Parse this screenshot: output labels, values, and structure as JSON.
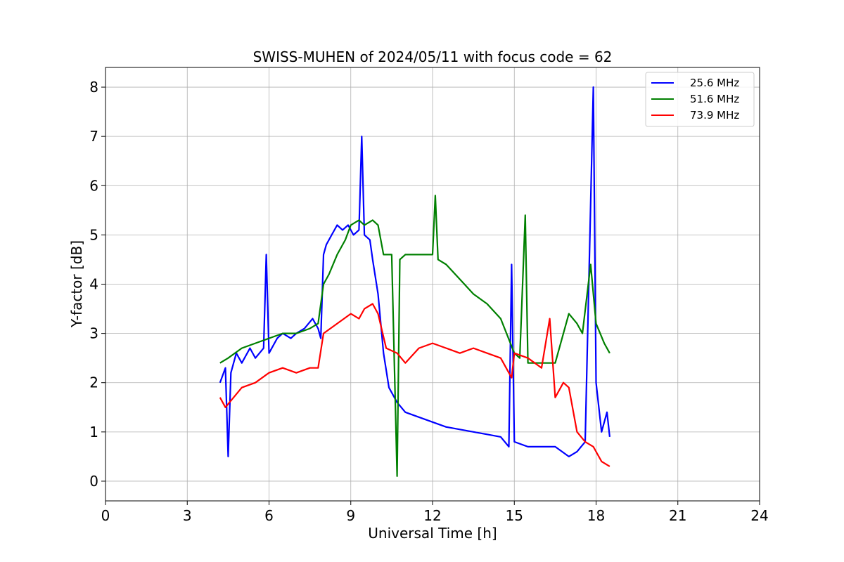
{
  "chart_data": {
    "type": "line",
    "title": "SWISS-MUHEN of 2024/05/11 with focus code = 62",
    "xlabel": "Universal Time [h]",
    "ylabel": "Y-factor [dB]",
    "xlim": [
      0,
      24
    ],
    "ylim": [
      -0.4,
      8.4
    ],
    "xticks": [
      "0",
      "3",
      "6",
      "9",
      "12",
      "15",
      "18",
      "21",
      "24"
    ],
    "yticks": [
      "0",
      "1",
      "2",
      "3",
      "4",
      "5",
      "6",
      "7",
      "8"
    ],
    "grid": true,
    "legend_position": "top-right",
    "series": [
      {
        "name": "25.6 MHz",
        "color": "#0000ff",
        "points": [
          [
            4.2,
            2.0
          ],
          [
            4.4,
            2.3
          ],
          [
            4.5,
            0.5
          ],
          [
            4.6,
            2.2
          ],
          [
            4.8,
            2.6
          ],
          [
            5.0,
            2.4
          ],
          [
            5.3,
            2.7
          ],
          [
            5.5,
            2.5
          ],
          [
            5.8,
            2.7
          ],
          [
            5.9,
            4.6
          ],
          [
            6.0,
            2.6
          ],
          [
            6.3,
            2.9
          ],
          [
            6.5,
            3.0
          ],
          [
            6.8,
            2.9
          ],
          [
            7.0,
            3.0
          ],
          [
            7.3,
            3.1
          ],
          [
            7.6,
            3.3
          ],
          [
            7.8,
            3.1
          ],
          [
            7.9,
            2.9
          ],
          [
            8.0,
            4.6
          ],
          [
            8.1,
            4.8
          ],
          [
            8.3,
            5.0
          ],
          [
            8.5,
            5.2
          ],
          [
            8.7,
            5.1
          ],
          [
            8.9,
            5.2
          ],
          [
            9.1,
            5.0
          ],
          [
            9.3,
            5.1
          ],
          [
            9.4,
            7.0
          ],
          [
            9.5,
            5.0
          ],
          [
            9.7,
            4.9
          ],
          [
            9.8,
            4.5
          ],
          [
            10.0,
            3.8
          ],
          [
            10.2,
            2.6
          ],
          [
            10.4,
            1.9
          ],
          [
            10.7,
            1.6
          ],
          [
            11.0,
            1.4
          ],
          [
            11.5,
            1.3
          ],
          [
            12.0,
            1.2
          ],
          [
            12.5,
            1.1
          ],
          [
            13.0,
            1.05
          ],
          [
            13.5,
            1.0
          ],
          [
            14.0,
            0.95
          ],
          [
            14.5,
            0.9
          ],
          [
            14.8,
            0.7
          ],
          [
            14.9,
            4.4
          ],
          [
            15.0,
            0.8
          ],
          [
            15.5,
            0.7
          ],
          [
            16.0,
            0.7
          ],
          [
            16.5,
            0.7
          ],
          [
            17.0,
            0.5
          ],
          [
            17.3,
            0.6
          ],
          [
            17.6,
            0.8
          ],
          [
            17.9,
            8.0
          ],
          [
            18.0,
            2.0
          ],
          [
            18.2,
            1.0
          ],
          [
            18.4,
            1.4
          ],
          [
            18.5,
            0.9
          ]
        ]
      },
      {
        "name": "51.6 MHz",
        "color": "#008000",
        "points": [
          [
            4.2,
            2.4
          ],
          [
            4.5,
            2.5
          ],
          [
            5.0,
            2.7
          ],
          [
            5.5,
            2.8
          ],
          [
            6.0,
            2.9
          ],
          [
            6.5,
            3.0
          ],
          [
            7.0,
            3.0
          ],
          [
            7.5,
            3.1
          ],
          [
            7.8,
            3.2
          ],
          [
            8.0,
            4.0
          ],
          [
            8.2,
            4.2
          ],
          [
            8.5,
            4.6
          ],
          [
            8.8,
            4.9
          ],
          [
            9.0,
            5.2
          ],
          [
            9.3,
            5.3
          ],
          [
            9.5,
            5.2
          ],
          [
            9.8,
            5.3
          ],
          [
            10.0,
            5.2
          ],
          [
            10.2,
            4.6
          ],
          [
            10.5,
            4.6
          ],
          [
            10.7,
            0.1
          ],
          [
            10.8,
            4.5
          ],
          [
            11.0,
            4.6
          ],
          [
            11.5,
            4.6
          ],
          [
            12.0,
            4.6
          ],
          [
            12.1,
            5.8
          ],
          [
            12.2,
            4.5
          ],
          [
            12.5,
            4.4
          ],
          [
            13.0,
            4.1
          ],
          [
            13.5,
            3.8
          ],
          [
            14.0,
            3.6
          ],
          [
            14.5,
            3.3
          ],
          [
            15.0,
            2.6
          ],
          [
            15.2,
            2.5
          ],
          [
            15.4,
            5.4
          ],
          [
            15.5,
            2.4
          ],
          [
            16.0,
            2.4
          ],
          [
            16.5,
            2.4
          ],
          [
            17.0,
            3.4
          ],
          [
            17.3,
            3.2
          ],
          [
            17.5,
            3.0
          ],
          [
            17.8,
            4.4
          ],
          [
            18.0,
            3.2
          ],
          [
            18.3,
            2.8
          ],
          [
            18.5,
            2.6
          ]
        ]
      },
      {
        "name": "73.9 MHz",
        "color": "#ff0000",
        "points": [
          [
            4.2,
            1.7
          ],
          [
            4.4,
            1.5
          ],
          [
            4.7,
            1.7
          ],
          [
            5.0,
            1.9
          ],
          [
            5.5,
            2.0
          ],
          [
            6.0,
            2.2
          ],
          [
            6.5,
            2.3
          ],
          [
            7.0,
            2.2
          ],
          [
            7.5,
            2.3
          ],
          [
            7.8,
            2.3
          ],
          [
            8.0,
            3.0
          ],
          [
            8.5,
            3.2
          ],
          [
            9.0,
            3.4
          ],
          [
            9.3,
            3.3
          ],
          [
            9.5,
            3.5
          ],
          [
            9.8,
            3.6
          ],
          [
            10.0,
            3.4
          ],
          [
            10.3,
            2.7
          ],
          [
            10.7,
            2.6
          ],
          [
            11.0,
            2.4
          ],
          [
            11.5,
            2.7
          ],
          [
            12.0,
            2.8
          ],
          [
            12.5,
            2.7
          ],
          [
            13.0,
            2.6
          ],
          [
            13.5,
            2.7
          ],
          [
            14.0,
            2.6
          ],
          [
            14.5,
            2.5
          ],
          [
            14.9,
            2.1
          ],
          [
            15.0,
            2.6
          ],
          [
            15.5,
            2.5
          ],
          [
            16.0,
            2.3
          ],
          [
            16.3,
            3.3
          ],
          [
            16.5,
            1.7
          ],
          [
            16.8,
            2.0
          ],
          [
            17.0,
            1.9
          ],
          [
            17.3,
            1.0
          ],
          [
            17.6,
            0.8
          ],
          [
            17.9,
            0.7
          ],
          [
            18.2,
            0.4
          ],
          [
            18.5,
            0.3
          ]
        ]
      }
    ]
  }
}
